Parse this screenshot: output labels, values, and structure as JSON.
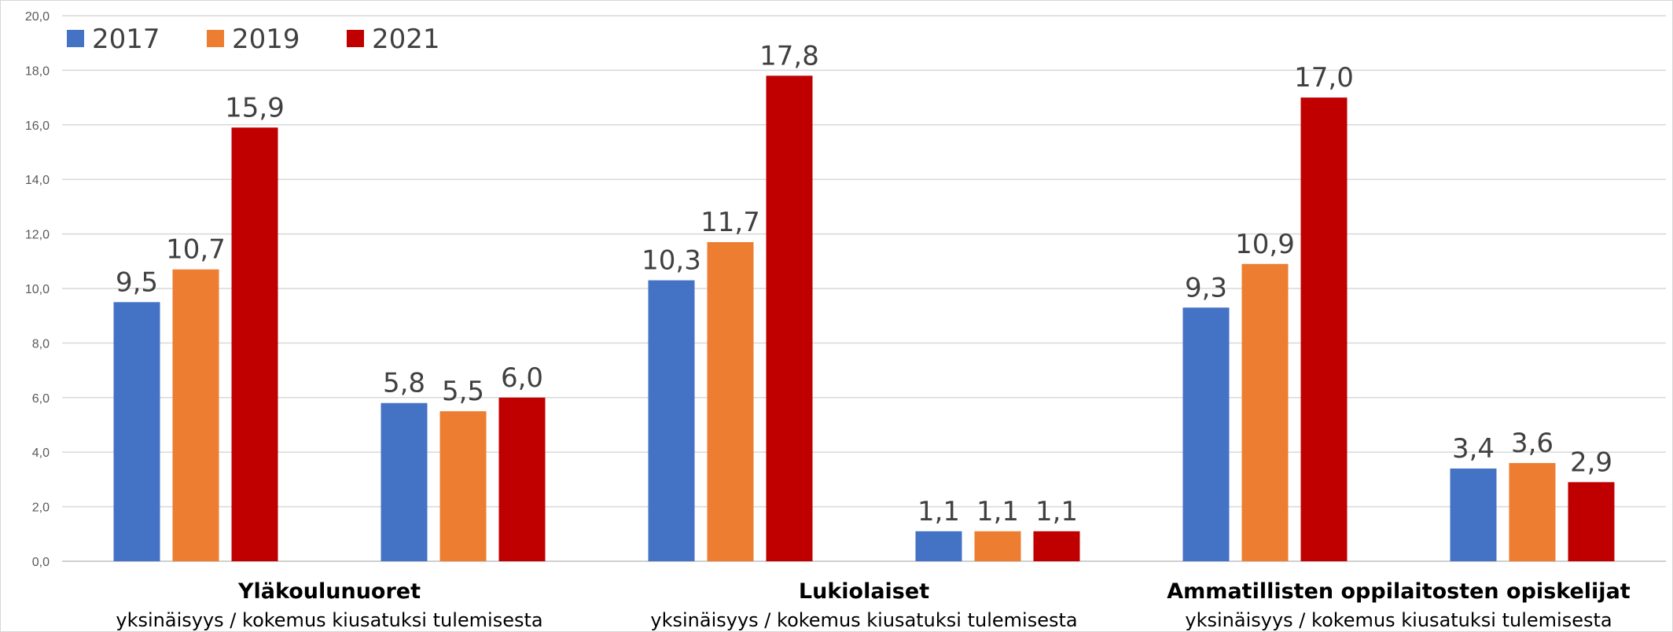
{
  "chart_data": {
    "type": "bar",
    "ylim": [
      0,
      20
    ],
    "yticks": [
      "0,0",
      "2,0",
      "4,0",
      "6,0",
      "8,0",
      "10,0",
      "12,0",
      "14,0",
      "16,0",
      "18,0",
      "20,0"
    ],
    "ytick_values": [
      0,
      2,
      4,
      6,
      8,
      10,
      12,
      14,
      16,
      18,
      20
    ],
    "grid": true,
    "legend_position": "top-left",
    "series": [
      {
        "name": "2017",
        "color": "#4472C4",
        "values": [
          9.5,
          5.8,
          10.3,
          1.1,
          9.3,
          3.4
        ],
        "labels": [
          "9,5",
          "5,8",
          "10,3",
          "1,1",
          "9,3",
          "3,4"
        ]
      },
      {
        "name": "2019",
        "color": "#ED7D31",
        "values": [
          10.7,
          5.5,
          11.7,
          1.1,
          10.9,
          3.6
        ],
        "labels": [
          "10,7",
          "5,5",
          "11,7",
          "1,1",
          "10,9",
          "3,6"
        ]
      },
      {
        "name": "2021",
        "color": "#C00000",
        "values": [
          15.9,
          6.0,
          17.8,
          1.1,
          17.0,
          2.9
        ],
        "labels": [
          "15,9",
          "6,0",
          "17,8",
          "1,1",
          "17,0",
          "2,9"
        ]
      }
    ],
    "groups": [
      {
        "title": "Yläkoulunuoret",
        "subtitle": "yksinäisyys / kokemus kiusatuksi tulemisesta"
      },
      {
        "title": "Lukiolaiset",
        "subtitle": "yksinäisyys / kokemus kiusatuksi tulemisesta"
      },
      {
        "title": "Ammatillisten oppilaitosten opiskelijat",
        "subtitle": "yksinäisyys / kokemus kiusatuksi tulemisesta"
      }
    ]
  }
}
